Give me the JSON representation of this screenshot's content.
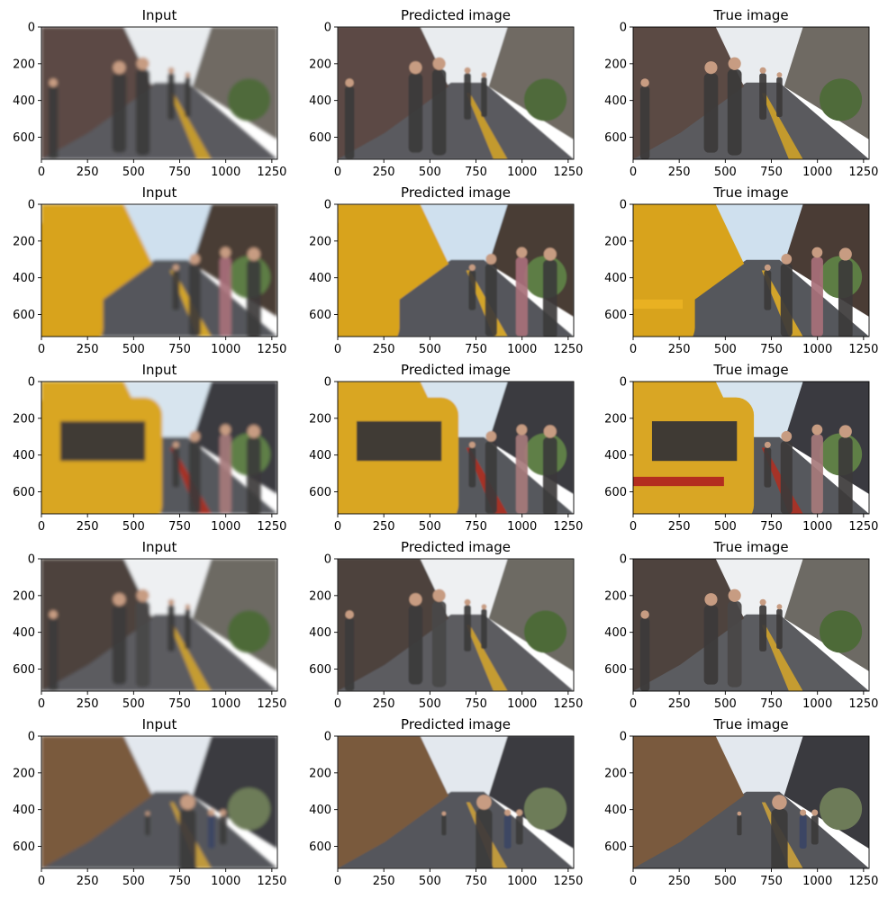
{
  "figure": {
    "column_titles": [
      "Input",
      "Predicted image",
      "True image"
    ]
  },
  "chart_data": {
    "type": "image-grid",
    "rows": 5,
    "columns": 3,
    "panel_titles": [
      [
        "Input",
        "Predicted image",
        "True image"
      ],
      [
        "Input",
        "Predicted image",
        "True image"
      ],
      [
        "Input",
        "Predicted image",
        "True image"
      ],
      [
        "Input",
        "Predicted image",
        "True image"
      ],
      [
        "Input",
        "Predicted image",
        "True image"
      ]
    ],
    "xlim": [
      0,
      1280
    ],
    "ylim": [
      720,
      0
    ],
    "x_ticks": [
      0,
      250,
      500,
      750,
      1000,
      1250
    ],
    "y_ticks": [
      0,
      200,
      400,
      600
    ],
    "row_scenes": [
      {
        "scene": "pedestrian-street",
        "palette": {
          "sky": "#e9ecef",
          "left": "#5b4a44",
          "right": "#6f6a63",
          "road": "#5a5a5e",
          "accent": "#d6a625",
          "people": "#3b3a3a",
          "green": "#4f6b3a"
        }
      },
      {
        "scene": "yellow-vehicle-crowd",
        "palette": {
          "sky": "#cfe0ee",
          "left": "#d8a31c",
          "right": "#4a3c35",
          "road": "#55575c",
          "accent": "#e9b122",
          "people": "#a8707a",
          "green": "#5d7d44"
        }
      },
      {
        "scene": "yellow-van-crowd",
        "palette": {
          "sky": "#d7e4ee",
          "left": "#d9a624",
          "right": "#3a3a40",
          "road": "#56585d",
          "accent": "#b32d1f",
          "people": "#a67a7b",
          "green": "#5f7f46"
        }
      },
      {
        "scene": "pedestrian-street-close",
        "palette": {
          "sky": "#eef0f2",
          "left": "#4e433e",
          "right": "#6d6a64",
          "road": "#5b5c60",
          "accent": "#d8a729",
          "people": "#494747",
          "green": "#4d6a38"
        }
      },
      {
        "scene": "market-street",
        "palette": {
          "sky": "#e3e8ee",
          "left": "#7a5a3e",
          "right": "#3a3a3f",
          "road": "#55565b",
          "accent": "#d2a43a",
          "people": "#3b4465",
          "green": "#6d7b58"
        }
      }
    ]
  }
}
